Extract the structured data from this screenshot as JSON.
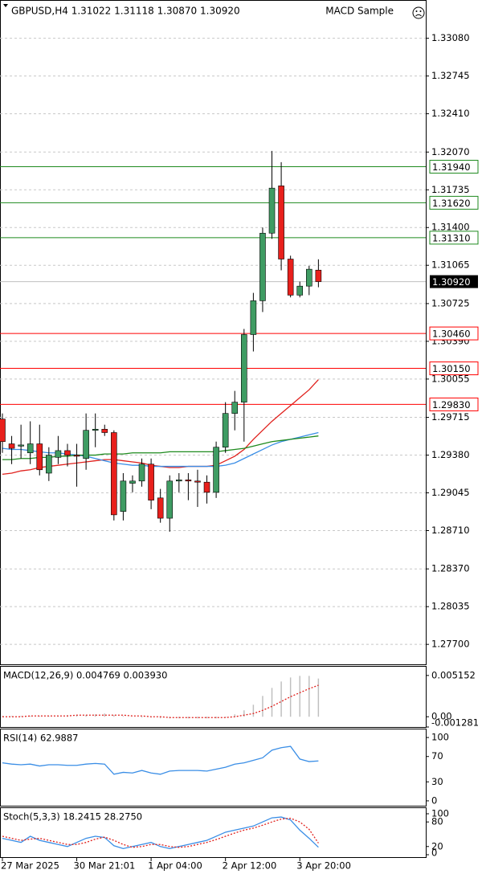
{
  "header": {
    "title": "GBPUSD,H4  1.31022 1.31118 1.30870 1.30920",
    "expert": "MACD Sample"
  },
  "chart_data": [
    {
      "type": "candlestick",
      "categories": [
        "27 Mar 2025",
        null,
        null,
        null,
        null,
        null,
        null,
        null,
        "30 Mar 21:01",
        null,
        null,
        null,
        null,
        null,
        null,
        null,
        "1 Apr 04:00",
        null,
        null,
        null,
        null,
        null,
        null,
        null,
        "2 Apr 12:00",
        null,
        null,
        null,
        null,
        null,
        null,
        null,
        "3 Apr 20:00",
        null,
        null
      ],
      "open": [
        1.297,
        1.2948,
        1.2946,
        1.294,
        1.2948,
        1.2922,
        1.2936,
        1.2942,
        1.2938,
        1.2935,
        1.296,
        1.2961,
        1.2958,
        1.2888,
        1.2913,
        1.2915,
        1.293,
        1.29,
        1.2882,
        1.2915,
        1.2916,
        1.2915,
        1.2914,
        1.2905,
        1.2945,
        1.2975,
        1.2985,
        1.3045,
        1.3075,
        1.3135,
        1.3177,
        1.3112,
        1.308,
        1.3088,
        1.31022
      ],
      "high": [
        1.2975,
        1.2955,
        1.2965,
        1.2968,
        1.2965,
        1.2945,
        1.2955,
        1.2948,
        1.2948,
        1.2975,
        1.2975,
        1.2965,
        1.296,
        1.2922,
        1.292,
        1.2935,
        1.2935,
        1.2908,
        1.292,
        1.2922,
        1.2922,
        1.2925,
        1.292,
        1.295,
        1.2985,
        1.2995,
        1.305,
        1.3082,
        1.314,
        1.3208,
        1.3198,
        1.3115,
        1.3092,
        1.3106,
        1.31118
      ],
      "low": [
        1.294,
        1.293,
        1.2935,
        1.293,
        1.292,
        1.2915,
        1.293,
        1.2928,
        1.291,
        1.2925,
        1.2945,
        1.2955,
        1.288,
        1.288,
        1.2905,
        1.291,
        1.289,
        1.2878,
        1.287,
        1.2905,
        1.2898,
        1.2892,
        1.2895,
        1.29,
        1.294,
        1.296,
        1.295,
        1.303,
        1.3065,
        1.313,
        1.3102,
        1.3078,
        1.3078,
        1.308,
        1.3087
      ],
      "close": [
        1.295,
        1.2944,
        1.2947,
        1.2948,
        1.2925,
        1.2938,
        1.2942,
        1.2938,
        1.2937,
        1.296,
        1.2961,
        1.2958,
        1.2885,
        1.2915,
        1.2915,
        1.293,
        1.2898,
        1.2882,
        1.2915,
        1.2916,
        1.2915,
        1.2914,
        1.2905,
        1.2945,
        1.2975,
        1.2985,
        1.3045,
        1.3075,
        1.3135,
        1.3175,
        1.3112,
        1.308,
        1.3088,
        1.3103,
        1.3092
      ],
      "bull_color": "#3f9c63",
      "bear_color": "#e8201c",
      "series": [
        {
          "color": "#e0201c",
          "values": [
            1.2921,
            1.2922,
            1.2924,
            1.2925,
            1.2927,
            1.2928,
            1.2929,
            1.293,
            1.2931,
            1.2932,
            1.2933,
            1.2934,
            1.2934,
            1.2933,
            1.2932,
            1.2931,
            1.2929,
            1.2928,
            1.2927,
            1.2927,
            1.2928,
            1.2928,
            1.2928,
            1.2929,
            1.2933,
            1.2937,
            1.2943,
            1.2952,
            1.296,
            1.2968,
            1.2975,
            1.2982,
            1.2989,
            1.2996,
            1.3005
          ]
        },
        {
          "color": "#3a8ee6",
          "values": [
            1.2944,
            1.2943,
            1.2943,
            1.2942,
            1.2941,
            1.294,
            1.294,
            1.2939,
            1.2938,
            1.2937,
            1.2935,
            1.2933,
            1.2931,
            1.293,
            1.2929,
            1.2929,
            1.2928,
            1.2928,
            1.2928,
            1.2928,
            1.2928,
            1.2928,
            1.2928,
            1.2928,
            1.2929,
            1.2931,
            1.2935,
            1.2939,
            1.2943,
            1.2947,
            1.295,
            1.2952,
            1.2954,
            1.2956,
            1.2958
          ]
        },
        {
          "color": "#1e8a1e",
          "values": [
            1.2934,
            1.2934,
            1.2935,
            1.2935,
            1.2936,
            1.2936,
            1.2937,
            1.2937,
            1.2938,
            1.2938,
            1.2938,
            1.2939,
            1.2939,
            1.2939,
            1.294,
            1.294,
            1.294,
            1.294,
            1.2941,
            1.2941,
            1.2941,
            1.2941,
            1.2941,
            1.2941,
            1.2942,
            1.2943,
            1.2944,
            1.2946,
            1.2948,
            1.295,
            1.2951,
            1.2952,
            1.2953,
            1.2954,
            1.2955
          ]
        }
      ],
      "ylim": [
        1.2753,
        1.3322
      ],
      "yticks": [
        {
          "value": 1.3308,
          "label": "1.33080"
        },
        {
          "value": 1.32745,
          "label": "1.32745"
        },
        {
          "value": 1.3241,
          "label": "1.32410"
        },
        {
          "value": 1.3207,
          "label": "1.32070"
        },
        {
          "value": 1.31735,
          "label": "1.31735"
        },
        {
          "value": 1.314,
          "label": "1.31400"
        },
        {
          "value": 1.31065,
          "label": "1.31065"
        },
        {
          "value": 1.30725,
          "label": "1.30725"
        },
        {
          "value": 1.3039,
          "label": "1.30390"
        },
        {
          "value": 1.30055,
          "label": "1.30055"
        },
        {
          "value": 1.29715,
          "label": "1.29715"
        },
        {
          "value": 1.2938,
          "label": "1.29380"
        },
        {
          "value": 1.29045,
          "label": "1.29045"
        },
        {
          "value": 1.2871,
          "label": "1.28710"
        },
        {
          "value": 1.2837,
          "label": "1.28370"
        },
        {
          "value": 1.28035,
          "label": "1.28035"
        },
        {
          "value": 1.277,
          "label": "1.27700"
        }
      ],
      "grid": true,
      "levels": {
        "values": [
          1.3194,
          1.3162,
          1.3131,
          1.3046,
          1.3015,
          1.2983
        ],
        "value_labels": [
          "1.31940",
          "1.31620",
          "1.31310",
          "1.30460",
          "1.30150",
          "1.29830"
        ],
        "colors": [
          "#1e8a1e",
          "#1e8a1e",
          "#1e8a1e",
          "#ff0000",
          "#ff0000",
          "#ff0000"
        ]
      },
      "current_price": {
        "value": 1.3092,
        "label": "1.30920",
        "color": "#c0c0c0"
      }
    },
    {
      "type": "bar",
      "title": "MACD(12,26,9) 0.004769 0.003930",
      "series": [
        {
          "style": "bar",
          "color": "#c0c0c0",
          "values": [
            0.0001,
            0.0001,
            0.0001,
            0.0001,
            0.0001,
            0.0001,
            0.0001,
            0.0002,
            0.0002,
            0.0002,
            0.0003,
            0.0004,
            0.0002,
            0.0001,
            0,
            -0.0001,
            -0.0001,
            -0.0002,
            -0.0002,
            -0.0002,
            -0.0002,
            -0.0002,
            -0.0002,
            -0.0002,
            -0.0001,
            0.0003,
            0.0008,
            0.0015,
            0.0026,
            0.0036,
            0.0044,
            0.0049,
            0.0051,
            0.0051,
            0.004769
          ]
        },
        {
          "style": "dotted",
          "color": "#e0201c",
          "values": [
            0,
            0,
            0,
            0.0001,
            0.0001,
            0.0001,
            0.0001,
            0.0001,
            0.0002,
            0.0002,
            0.0002,
            0.0002,
            0.0002,
            0.0002,
            0.0001,
            0.0001,
            0,
            0,
            -0.0001,
            -0.0001,
            -0.0001,
            -0.0001,
            -0.0001,
            -0.0001,
            -0.0001,
            0,
            0.0002,
            0.0004,
            0.0008,
            0.0013,
            0.0019,
            0.0025,
            0.003,
            0.0035,
            0.00393
          ]
        }
      ],
      "ylim": [
        -0.00128,
        0.00624
      ],
      "yticks": [
        0.005152,
        {
          "value": 0,
          "label": "0.00"
        },
        -0.001281
      ]
    },
    {
      "type": "line",
      "title": "RSI(14) 62.9887",
      "series": [
        {
          "style": "solid",
          "color": "#3a8ee6",
          "values": [
            60,
            58,
            57,
            58,
            55,
            57,
            57,
            56,
            56,
            58,
            59,
            58,
            42,
            45,
            44,
            48,
            44,
            42,
            47,
            48,
            48,
            48,
            47,
            50,
            53,
            58,
            60,
            64,
            68,
            80,
            84,
            86,
            66,
            62,
            62.9887
          ]
        }
      ],
      "ylim": [
        -7.7,
        112.8
      ],
      "yticks": [
        100,
        70,
        30,
        0
      ]
    },
    {
      "type": "line",
      "title": "Stoch(5,3,3) 18.2415 28.2750",
      "series": [
        {
          "style": "solid",
          "color": "#3a8ee6",
          "values": [
            40,
            35,
            30,
            45,
            35,
            30,
            25,
            20,
            30,
            40,
            45,
            42,
            22,
            15,
            20,
            25,
            30,
            20,
            15,
            20,
            25,
            30,
            35,
            45,
            55,
            60,
            65,
            70,
            80,
            90,
            92,
            85,
            60,
            40,
            18.2415
          ]
        },
        {
          "style": "dotted",
          "color": "#e0201c",
          "values": [
            45,
            40,
            35,
            38,
            40,
            35,
            30,
            25,
            25,
            30,
            38,
            43,
            35,
            25,
            18,
            20,
            25,
            25,
            20,
            18,
            20,
            25,
            30,
            37,
            45,
            53,
            60,
            65,
            72,
            80,
            87,
            89,
            80,
            62,
            28.275
          ]
        }
      ],
      "ylim": [
        -5.9,
        113.7
      ],
      "yticks": [
        100,
        80,
        20,
        0
      ]
    }
  ]
}
